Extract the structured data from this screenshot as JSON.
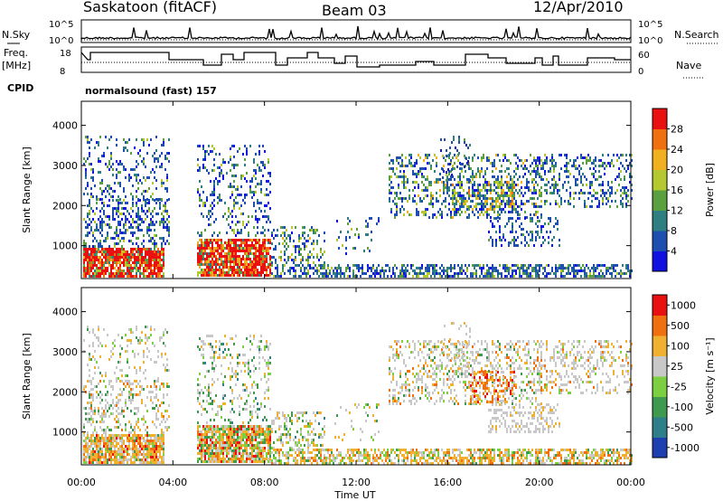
{
  "header": {
    "station": "Saskatoon (fitACF)",
    "beam": "Beam 03",
    "date": "12/Apr/2010"
  },
  "top_panel": {
    "left_label": "N.Sky",
    "left_ticks": [
      "10^5",
      "10^0"
    ],
    "right_ticks": [
      "10^5",
      "10^0"
    ],
    "right_label": "N.Search"
  },
  "freq_panel": {
    "left_label_1": "Freq.",
    "left_label_2": "[MHz]",
    "left_ticks": [
      "18",
      "8"
    ],
    "right_ticks": [
      "60",
      "0"
    ],
    "right_label": "Nave"
  },
  "cpid": {
    "label": "CPID",
    "program": "normalsound (fast) 157"
  },
  "chart_data": [
    {
      "type": "heatmap",
      "title": "",
      "ylabel": "Slant Range [km]",
      "xlabel": "",
      "ylim": [
        180,
        4600
      ],
      "yticks": [
        "1000",
        "2000",
        "3000",
        "4000"
      ],
      "xticks": [
        "00:00",
        "04:00",
        "08:00",
        "12:00",
        "16:00",
        "20:00",
        "00:00"
      ],
      "colorbar": {
        "label": "Power [dB]",
        "ticks": [
          "4",
          "8",
          "12",
          "16",
          "20",
          "24",
          "28"
        ],
        "colors": [
          "#1010e0",
          "#1e4fb0",
          "#2f7f82",
          "#5aa040",
          "#b5c830",
          "#f0b020",
          "#f07010",
          "#e81010"
        ]
      }
    },
    {
      "type": "heatmap",
      "title": "",
      "ylabel": "Slant Range [km]",
      "xlabel": "Time UT",
      "ylim": [
        180,
        4600
      ],
      "yticks": [
        "1000",
        "2000",
        "3000",
        "4000"
      ],
      "xticks": [
        "00:00",
        "04:00",
        "08:00",
        "12:00",
        "16:00",
        "20:00",
        "00:00"
      ],
      "colorbar": {
        "label": "Velocity [m s⁻¹]",
        "ticks": [
          "1000",
          "500",
          "100",
          "25",
          "-25",
          "-100",
          "-500",
          "-1000"
        ],
        "colors": [
          "#1e3fb0",
          "#2f7f8a",
          "#3f9a50",
          "#7ccf40",
          "#c8c8c8",
          "#f0b030",
          "#f07010",
          "#e81010"
        ]
      }
    }
  ]
}
